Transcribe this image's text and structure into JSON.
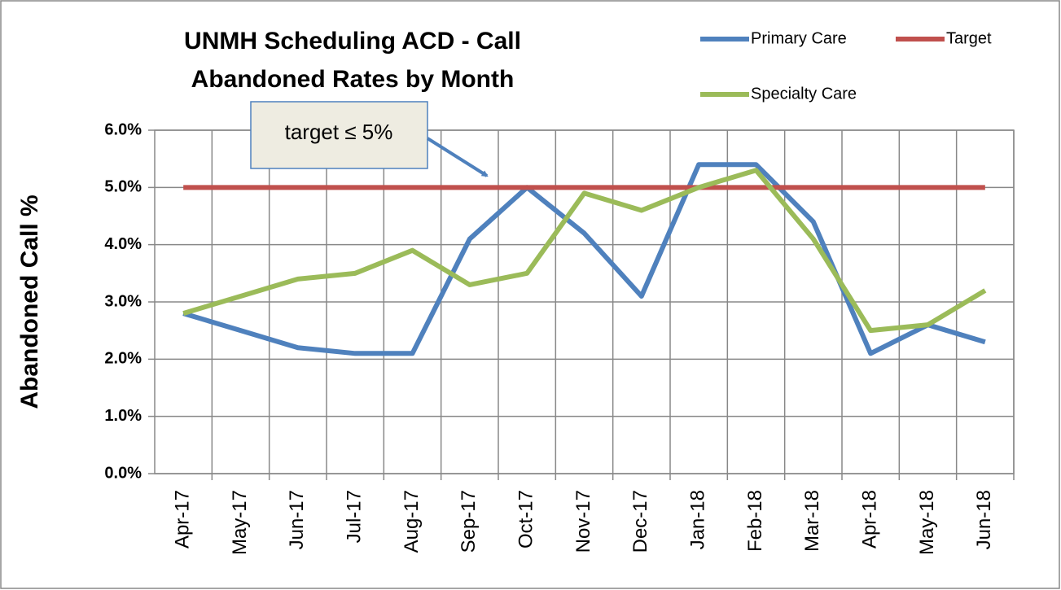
{
  "chart_data": {
    "type": "line",
    "title": [
      "UNMH Scheduling ACD - Call",
      "Abandoned Rates by Month"
    ],
    "y_axis_label": "Abandoned Call %",
    "annotation": "target ≤ 5%",
    "categories": [
      "Apr-17",
      "May-17",
      "Jun-17",
      "Jul-17",
      "Aug-17",
      "Sep-17",
      "Oct-17",
      "Nov-17",
      "Dec-17",
      "Jan-18",
      "Feb-18",
      "Mar-18",
      "Apr-18",
      "May-18",
      "Jun-18"
    ],
    "series": [
      {
        "name": "Primary Care",
        "color": "#4f81bd",
        "values": [
          2.8,
          2.5,
          2.2,
          2.1,
          2.1,
          4.1,
          5.0,
          4.2,
          3.1,
          5.4,
          5.4,
          4.4,
          2.1,
          2.6,
          2.3
        ]
      },
      {
        "name": "Target",
        "color": "#c0504d",
        "values": [
          5,
          5,
          5,
          5,
          5,
          5,
          5,
          5,
          5,
          5,
          5,
          5,
          5,
          5,
          5
        ]
      },
      {
        "name": "Specialty Care",
        "color": "#9bbb59",
        "values": [
          2.8,
          3.1,
          3.4,
          3.5,
          3.9,
          3.3,
          3.5,
          4.9,
          4.6,
          5.0,
          5.3,
          4.1,
          2.5,
          2.6,
          3.2
        ]
      }
    ],
    "ylim": [
      0,
      6
    ],
    "yticks": [
      {
        "value": 0,
        "label": "0.0%"
      },
      {
        "value": 1,
        "label": "1.0%"
      },
      {
        "value": 2,
        "label": "2.0%"
      },
      {
        "value": 3,
        "label": "3.0%"
      },
      {
        "value": 4,
        "label": "4.0%"
      },
      {
        "value": 5,
        "label": "5.0%"
      },
      {
        "value": 6,
        "label": "6.0%"
      }
    ],
    "grid": true
  }
}
